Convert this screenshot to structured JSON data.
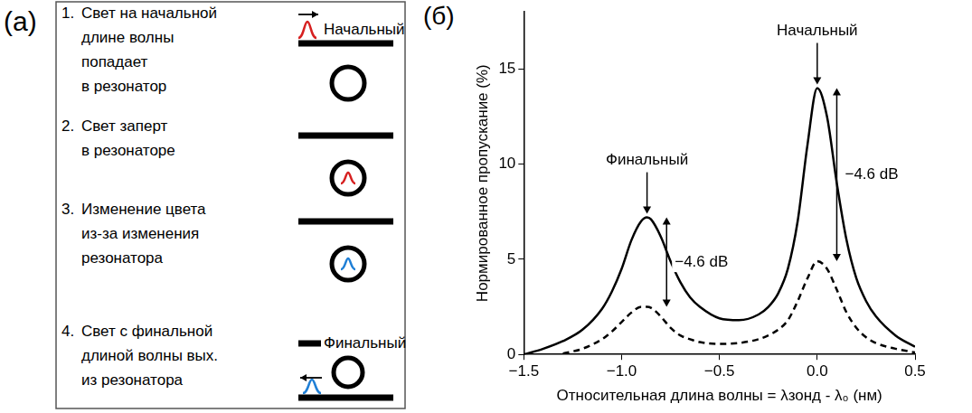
{
  "diagram": {
    "letter": "(а)",
    "steps": [
      {
        "number": "1.",
        "lines": [
          "Свет на начальной",
          "длине волны",
          "попадает",
          "в резонатор"
        ]
      },
      {
        "number": "2.",
        "lines": [
          "Свет заперт",
          "в резонаторе"
        ]
      },
      {
        "number": "3.",
        "lines": [
          "Изменение цвета",
          "из-за изменения",
          "резонатора"
        ]
      },
      {
        "number": "4.",
        "lines": [
          "Свет с финальной",
          "длиной волны вых.",
          "из резонатора"
        ]
      }
    ],
    "initial_label": "Начальный",
    "final_label": "Финальный"
  },
  "chart_data": {
    "type": "line",
    "panel_letter": "(б)",
    "x_label": "Относительная длина волны = λзонд - λ₀ (нм)",
    "y_label": "Нормированное пропускание (%)",
    "x": [
      -1.5,
      -1.4,
      -1.3,
      -1.2,
      -1.1,
      -1.05,
      -1.0,
      -0.95,
      -0.9,
      -0.87,
      -0.85,
      -0.8,
      -0.75,
      -0.7,
      -0.65,
      -0.6,
      -0.5,
      -0.4,
      -0.3,
      -0.25,
      -0.2,
      -0.15,
      -0.1,
      -0.05,
      0.0,
      0.05,
      0.1,
      0.15,
      0.2,
      0.25,
      0.3,
      0.4,
      0.5
    ],
    "series": [
      {
        "color": "#000000",
        "line_style": "solid",
        "marker": "none",
        "values": [
          0,
          0.3,
          0.7,
          1.3,
          2.4,
          3.3,
          4.5,
          6.0,
          7.0,
          7.2,
          7.1,
          6.2,
          4.9,
          3.8,
          3.0,
          2.5,
          1.9,
          1.8,
          2.1,
          2.5,
          3.2,
          4.5,
          7.0,
          11.0,
          14.0,
          12.5,
          9.0,
          6.0,
          4.0,
          2.8,
          2.0,
          1.0,
          0.4
        ]
      },
      {
        "color": "#000000",
        "line_style": "dashed",
        "marker": "none",
        "values": [
          null,
          null,
          0.05,
          0.3,
          0.8,
          1.2,
          1.7,
          2.2,
          2.5,
          2.5,
          2.45,
          2.0,
          1.4,
          1.0,
          0.8,
          0.65,
          0.55,
          0.6,
          0.8,
          1.0,
          1.3,
          1.8,
          2.8,
          4.0,
          4.9,
          4.5,
          3.4,
          2.2,
          1.4,
          0.9,
          0.6,
          0.3,
          0.1
        ]
      }
    ],
    "xlim": [
      -1.5,
      0.5
    ],
    "xticks": [
      {
        "value": -1.5,
        "label": "−1.5"
      },
      {
        "value": -1.0,
        "label": "−1.0"
      },
      {
        "value": -0.5,
        "label": "−0.5"
      },
      {
        "value": 0.0,
        "label": "0.0"
      },
      {
        "value": 0.5,
        "label": "0.5"
      }
    ],
    "ylim": [
      0,
      18
    ],
    "yticks": [
      0,
      5,
      10,
      15
    ],
    "grid": false,
    "annotations": [
      {
        "text": "Финальный",
        "x": -0.87,
        "y": 7.2
      },
      {
        "text": "Начальный",
        "x": 0.0,
        "y": 14.0
      }
    ],
    "arrows": [
      {
        "x": -0.77,
        "y_from": 7.2,
        "y_to": 2.5,
        "label": "−4.6 dB"
      },
      {
        "x": 0.1,
        "y_from": 14.0,
        "y_to": 4.9,
        "label": "−4.6 dB"
      }
    ]
  }
}
